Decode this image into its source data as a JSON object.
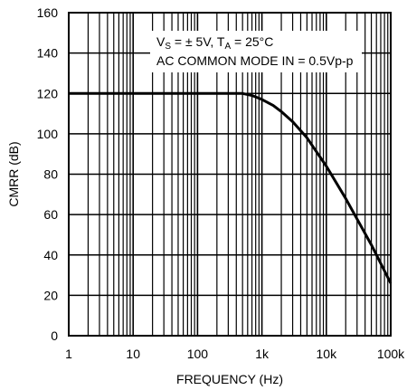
{
  "chart_data": {
    "type": "line",
    "xscale": "log",
    "xlim": [
      1,
      100000
    ],
    "ylim": [
      0,
      160
    ],
    "xticks": [
      "1",
      "10",
      "100",
      "1k",
      "10k",
      "100k"
    ],
    "xtick_values": [
      1,
      10,
      100,
      1000,
      10000,
      100000
    ],
    "yticks": [
      "0",
      "20",
      "40",
      "60",
      "80",
      "100",
      "120",
      "140",
      "160"
    ],
    "ytick_values": [
      0,
      20,
      40,
      60,
      80,
      100,
      120,
      140,
      160
    ],
    "xlabel": "FREQUENCY (Hz)",
    "ylabel": "CMRR (dB)",
    "grid": true,
    "annotation": {
      "line1": {
        "vs_main": "V",
        "vs_sub": "S",
        "vs_rest": " = ± 5V, T",
        "ta_sub": "A",
        "ta_rest": " = 25°C"
      },
      "line2": "AC COMMON MODE IN = 0.5Vp-p"
    },
    "series": [
      {
        "x": [
          1,
          10,
          100,
          500,
          700,
          1000,
          1500,
          2000,
          3000,
          5000,
          10000,
          20000,
          50000,
          100000
        ],
        "y": [
          120,
          120,
          120,
          120,
          119,
          117,
          114,
          111,
          106,
          98,
          84,
          68,
          45,
          26
        ]
      }
    ],
    "colors": {
      "line": "#000000",
      "grid": "#000000",
      "background": "#ffffff"
    }
  }
}
